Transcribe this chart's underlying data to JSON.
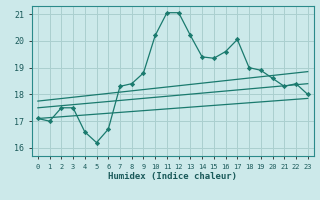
{
  "title": "",
  "xlabel": "Humidex (Indice chaleur)",
  "xlim": [
    -0.5,
    23.5
  ],
  "ylim": [
    15.7,
    21.3
  ],
  "yticks": [
    16,
    17,
    18,
    19,
    20,
    21
  ],
  "xticks": [
    0,
    1,
    2,
    3,
    4,
    5,
    6,
    7,
    8,
    9,
    10,
    11,
    12,
    13,
    14,
    15,
    16,
    17,
    18,
    19,
    20,
    21,
    22,
    23
  ],
  "bg_color": "#cce9ea",
  "grid_color": "#aacfcf",
  "line_color": "#1a7a6e",
  "zigzag_x": [
    0,
    1,
    2,
    3,
    4,
    5,
    6,
    7,
    8,
    9,
    10,
    11,
    12,
    13,
    14,
    15,
    16,
    17,
    18,
    19,
    20,
    21,
    22,
    23
  ],
  "zigzag_y": [
    17.1,
    17.0,
    17.5,
    17.5,
    16.6,
    16.2,
    16.7,
    18.3,
    18.4,
    18.8,
    20.2,
    21.05,
    21.05,
    20.2,
    19.4,
    19.35,
    19.6,
    20.05,
    19.0,
    18.9,
    18.6,
    18.3,
    18.4,
    18.0
  ],
  "line1_x": [
    0,
    23
  ],
  "line1_y": [
    17.1,
    17.85
  ],
  "line2_x": [
    0,
    23
  ],
  "line2_y": [
    17.5,
    18.4
  ],
  "line3_x": [
    0,
    23
  ],
  "line3_y": [
    17.75,
    18.85
  ]
}
